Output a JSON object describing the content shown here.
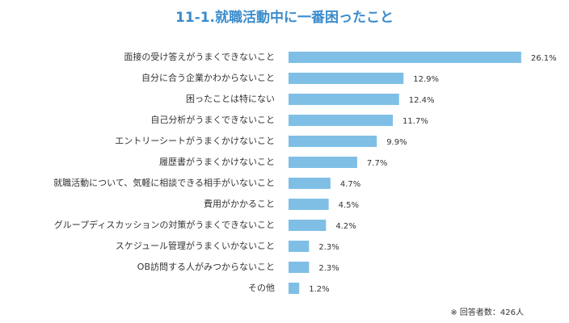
{
  "chart_data": {
    "type": "bar",
    "orientation": "horizontal",
    "title": "11-1.就職活動中に一番困ったこと",
    "categories": [
      "面接の受け答えがうまくできないこと",
      "自分に合う企業かわからないこと",
      "困ったことは特にない",
      "自己分析がうまくできないこと",
      "エントリーシートがうまくかけないこと",
      "履歴書がうまくかけないこと",
      "就職活動について、気軽に相談できる相手がいないこと",
      "費用がかかること",
      "グループディスカッションの対策がうまくできないこと",
      "スケジュール管理がうまくいかないこと",
      "OB訪問する人がみつからないこと",
      "その他"
    ],
    "values": [
      26.1,
      12.9,
      12.4,
      11.7,
      9.9,
      7.7,
      4.7,
      4.5,
      4.2,
      2.3,
      2.3,
      1.2
    ],
    "value_labels": [
      "26.1%",
      "12.9%",
      "12.4%",
      "11.7%",
      "9.9%",
      "7.7%",
      "4.7%",
      "4.5%",
      "4.2%",
      "2.3%",
      "2.3%",
      "1.2%"
    ],
    "color": "#7fbfe6",
    "annotation": "※ 回答者数：426人"
  }
}
